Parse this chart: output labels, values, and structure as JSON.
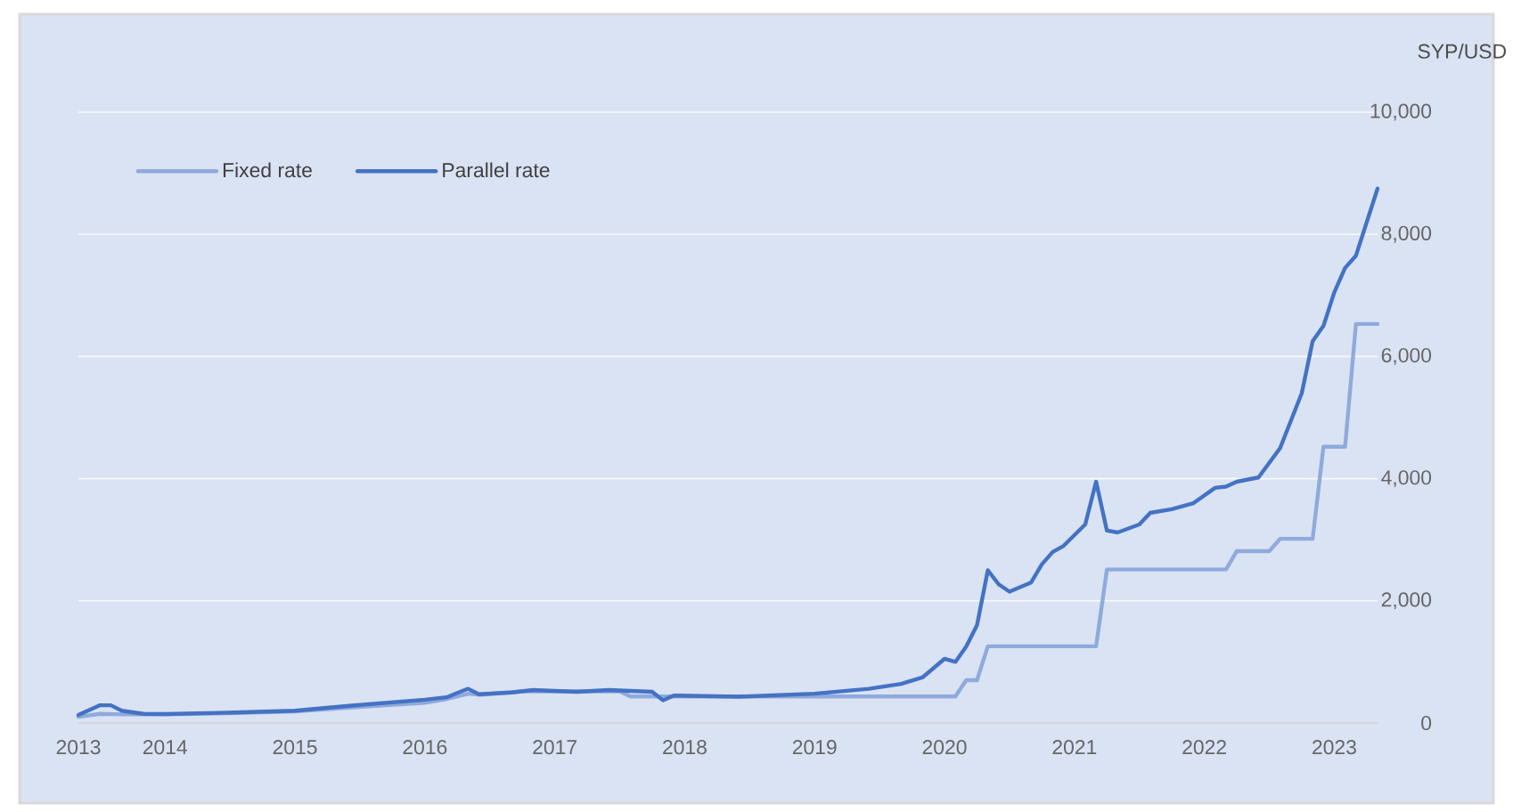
{
  "chart_data": {
    "type": "line",
    "ylabel": "SYP/USD",
    "xlim": [
      "2013-05",
      "2023-05"
    ],
    "ylim": [
      0,
      10000
    ],
    "xticks": [
      {
        "value": "2013-05",
        "label": "2013"
      },
      {
        "value": "2014-01",
        "label": "2014"
      },
      {
        "value": "2015-01",
        "label": "2015"
      },
      {
        "value": "2016-01",
        "label": "2016"
      },
      {
        "value": "2017-01",
        "label": "2017"
      },
      {
        "value": "2018-01",
        "label": "2018"
      },
      {
        "value": "2019-01",
        "label": "2019"
      },
      {
        "value": "2020-01",
        "label": "2020"
      },
      {
        "value": "2021-01",
        "label": "2021"
      },
      {
        "value": "2022-01",
        "label": "2022"
      },
      {
        "value": "2023-01",
        "label": "2023"
      }
    ],
    "yticks": [
      0,
      {
        "value": 2000,
        "label": "2,000"
      },
      {
        "value": 4000,
        "label": "4,000"
      },
      {
        "value": 6000,
        "label": "6,000"
      },
      {
        "value": 8000,
        "label": "8,000"
      },
      {
        "value": 10000,
        "label": "10,000"
      }
    ],
    "grid": "y",
    "legend": "top left",
    "series": [
      {
        "name": "Fixed rate",
        "color": "#8faadc",
        "x": [
          "2013-05",
          "2013-07",
          "2013-09",
          "2014-01",
          "2014-06",
          "2015-01",
          "2015-06",
          "2016-01",
          "2016-03",
          "2016-05",
          "2016-06",
          "2016-10",
          "2017-07",
          "2017-08",
          "2020-02",
          "2020-03",
          "2020-04",
          "2020-05",
          "2021-03",
          "2021-04",
          "2022-03",
          "2022-04",
          "2022-07",
          "2022-08",
          "2022-11",
          "2022-12",
          "2023-02",
          "2023-03",
          "2023-05"
        ],
        "values": [
          100,
          150,
          140,
          140,
          155,
          190,
          250,
          330,
          390,
          480,
          460,
          517,
          517,
          434,
          434,
          700,
          700,
          1256,
          1256,
          2512,
          2512,
          2814,
          2814,
          3015,
          3015,
          4522,
          4522,
          6532,
          6532
        ]
      },
      {
        "name": "Parallel rate",
        "color": "#4472c4",
        "x": [
          "2013-05",
          "2013-07",
          "2013-08",
          "2013-09",
          "2013-11",
          "2014-01",
          "2014-06",
          "2015-01",
          "2015-06",
          "2016-01",
          "2016-03",
          "2016-05",
          "2016-06",
          "2016-09",
          "2016-11",
          "2017-03",
          "2017-06",
          "2017-10",
          "2017-11",
          "2017-12",
          "2018-06",
          "2019-01",
          "2019-06",
          "2019-09",
          "2019-11",
          "2020-01",
          "2020-02",
          "2020-03",
          "2020-04",
          "2020-05",
          "2020-06",
          "2020-07",
          "2020-09",
          "2020-10",
          "2020-11",
          "2020-12",
          "2021-02",
          "2021-03",
          "2021-04",
          "2021-05",
          "2021-07",
          "2021-08",
          "2021-10",
          "2021-12",
          "2022-02",
          "2022-03",
          "2022-04",
          "2022-06",
          "2022-08",
          "2022-10",
          "2022-11",
          "2022-12",
          "2023-01",
          "2023-02",
          "2023-03",
          "2023-05"
        ],
        "values": [
          130,
          290,
          290,
          200,
          150,
          145,
          165,
          200,
          280,
          380,
          420,
          560,
          470,
          500,
          540,
          510,
          540,
          510,
          370,
          450,
          430,
          480,
          560,
          640,
          750,
          1050,
          1000,
          1250,
          1600,
          2500,
          2270,
          2150,
          2300,
          2600,
          2800,
          2900,
          3250,
          3950,
          3150,
          3120,
          3250,
          3440,
          3500,
          3600,
          3850,
          3870,
          3950,
          4020,
          4500,
          5400,
          6250,
          6500,
          7050,
          7450,
          7650,
          8750
        ]
      }
    ]
  }
}
